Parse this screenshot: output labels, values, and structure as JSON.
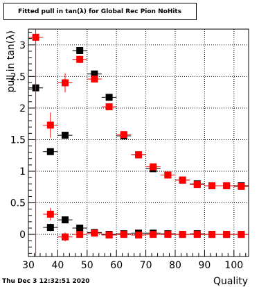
{
  "chart_data": {
    "type": "scatter",
    "title": "Fitted pull in tan(λ) for Global Rec Pion NoHits",
    "xlabel": "Quality",
    "ylabel": "pull in tan(λ)",
    "xlim": [
      30,
      105
    ],
    "ylim": [
      -0.35,
      3.25
    ],
    "xticks": [
      30,
      40,
      50,
      60,
      70,
      80,
      90,
      100
    ],
    "yticks": [
      0,
      0.5,
      1,
      1.5,
      2,
      2.5,
      3
    ],
    "ytick_labels": [
      "0",
      "0.5",
      "1",
      "1.5",
      "2",
      "2.5",
      "3"
    ],
    "grid": true,
    "x_error": 2.5,
    "series": [
      {
        "color": "#000000",
        "marker": "square",
        "points": [
          {
            "x": 32.5,
            "y": 2.32,
            "yerr": 0.0
          },
          {
            "x": 37.5,
            "y": 1.31,
            "yerr": 0.05
          },
          {
            "x": 42.5,
            "y": 1.57,
            "yerr": 0.05
          },
          {
            "x": 47.5,
            "y": 2.91,
            "yerr": 0.05
          },
          {
            "x": 52.5,
            "y": 2.54,
            "yerr": 0.04
          },
          {
            "x": 57.5,
            "y": 2.17,
            "yerr": 0.03
          },
          {
            "x": 62.5,
            "y": 1.56,
            "yerr": 0.03
          },
          {
            "x": 67.5,
            "y": 1.26,
            "yerr": 0.02
          },
          {
            "x": 72.5,
            "y": 1.04,
            "yerr": 0.02
          },
          {
            "x": 77.5,
            "y": 0.94,
            "yerr": 0.02
          },
          {
            "x": 82.5,
            "y": 0.86,
            "yerr": 0.02
          },
          {
            "x": 87.5,
            "y": 0.8,
            "yerr": 0.02
          },
          {
            "x": 92.5,
            "y": 0.77,
            "yerr": 0.02
          },
          {
            "x": 97.5,
            "y": 0.77,
            "yerr": 0.02
          },
          {
            "x": 102.5,
            "y": 0.77,
            "yerr": 0.02
          },
          {
            "x": 37.5,
            "y": 0.11,
            "yerr": 0.06
          },
          {
            "x": 42.5,
            "y": 0.23,
            "yerr": 0.05
          },
          {
            "x": 47.5,
            "y": 0.1,
            "yerr": 0.03
          },
          {
            "x": 52.5,
            "y": 0.03,
            "yerr": 0.02
          },
          {
            "x": 57.5,
            "y": 0.0,
            "yerr": 0.02
          },
          {
            "x": 62.5,
            "y": 0.01,
            "yerr": 0.01
          },
          {
            "x": 67.5,
            "y": 0.02,
            "yerr": 0.01
          },
          {
            "x": 72.5,
            "y": 0.02,
            "yerr": 0.01
          },
          {
            "x": 77.5,
            "y": 0.01,
            "yerr": 0.01
          },
          {
            "x": 82.5,
            "y": 0.0,
            "yerr": 0.01
          },
          {
            "x": 87.5,
            "y": 0.01,
            "yerr": 0.01
          },
          {
            "x": 92.5,
            "y": 0.0,
            "yerr": 0.01
          },
          {
            "x": 97.5,
            "y": 0.0,
            "yerr": 0.01
          },
          {
            "x": 102.5,
            "y": 0.0,
            "yerr": 0.01
          }
        ]
      },
      {
        "color": "#ff0000",
        "marker": "square",
        "points": [
          {
            "x": 32.5,
            "y": 3.12,
            "yerr": 3.5
          },
          {
            "x": 37.5,
            "y": 1.73,
            "yerr": 0.2
          },
          {
            "x": 42.5,
            "y": 2.4,
            "yerr": 0.15
          },
          {
            "x": 47.5,
            "y": 2.77,
            "yerr": 0.06
          },
          {
            "x": 52.5,
            "y": 2.46,
            "yerr": 0.04
          },
          {
            "x": 57.5,
            "y": 2.02,
            "yerr": 0.03
          },
          {
            "x": 62.5,
            "y": 1.58,
            "yerr": 0.03
          },
          {
            "x": 67.5,
            "y": 1.26,
            "yerr": 0.02
          },
          {
            "x": 72.5,
            "y": 1.07,
            "yerr": 0.02
          },
          {
            "x": 77.5,
            "y": 0.94,
            "yerr": 0.02
          },
          {
            "x": 82.5,
            "y": 0.86,
            "yerr": 0.02
          },
          {
            "x": 87.5,
            "y": 0.79,
            "yerr": 0.02
          },
          {
            "x": 92.5,
            "y": 0.77,
            "yerr": 0.02
          },
          {
            "x": 97.5,
            "y": 0.77,
            "yerr": 0.02
          },
          {
            "x": 102.5,
            "y": 0.76,
            "yerr": 0.02
          },
          {
            "x": 37.5,
            "y": 0.32,
            "yerr": 0.1
          },
          {
            "x": 42.5,
            "y": -0.04,
            "yerr": 0.07
          },
          {
            "x": 47.5,
            "y": 0.0,
            "yerr": 0.03
          },
          {
            "x": 52.5,
            "y": 0.02,
            "yerr": 0.02
          },
          {
            "x": 57.5,
            "y": -0.01,
            "yerr": 0.02
          },
          {
            "x": 62.5,
            "y": 0.0,
            "yerr": 0.01
          },
          {
            "x": 67.5,
            "y": -0.01,
            "yerr": 0.01
          },
          {
            "x": 72.5,
            "y": 0.0,
            "yerr": 0.01
          },
          {
            "x": 77.5,
            "y": 0.0,
            "yerr": 0.01
          },
          {
            "x": 82.5,
            "y": 0.0,
            "yerr": 0.01
          },
          {
            "x": 87.5,
            "y": 0.0,
            "yerr": 0.01
          },
          {
            "x": 92.5,
            "y": 0.0,
            "yerr": 0.01
          },
          {
            "x": 97.5,
            "y": 0.0,
            "yerr": 0.01
          },
          {
            "x": 102.5,
            "y": 0.0,
            "yerr": 0.01
          }
        ]
      }
    ]
  },
  "footer": {
    "date_text": "Thu Dec  3 12:32:51 2020"
  }
}
